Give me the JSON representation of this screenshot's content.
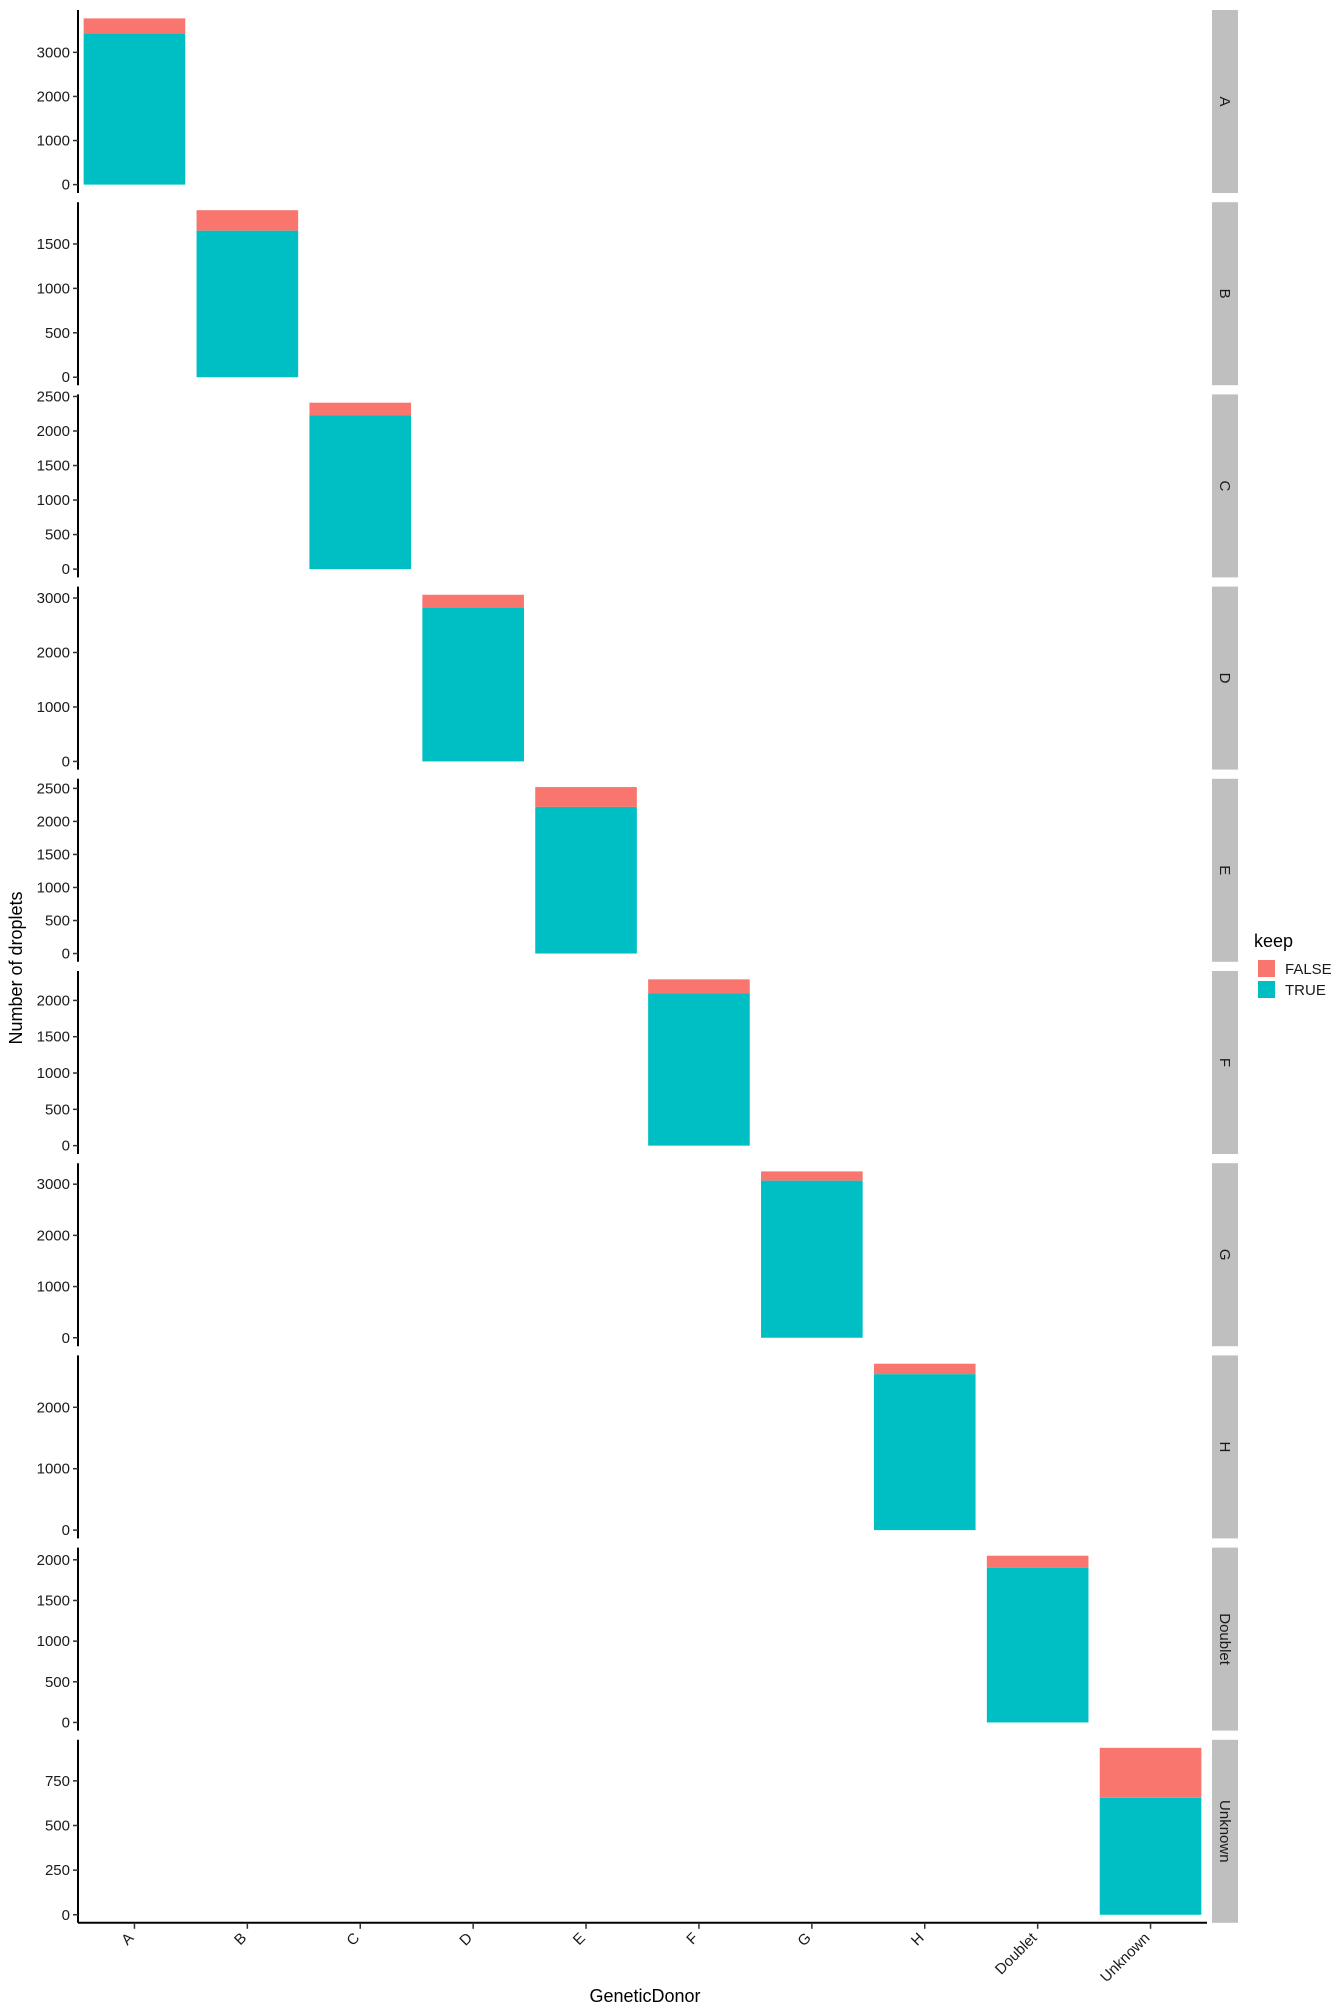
{
  "chart_data": {
    "type": "bar",
    "stacked": true,
    "faceted": true,
    "facet_direction": "rows",
    "free_y_scales": true,
    "xlabel": "GeneticDonor",
    "ylabel": "Number of droplets",
    "categories": [
      "A",
      "B",
      "C",
      "D",
      "E",
      "F",
      "G",
      "H",
      "Doublet",
      "Unknown"
    ],
    "legend": {
      "title": "keep",
      "placement": "right",
      "entries": [
        {
          "label": "FALSE",
          "color": "#F8766D"
        },
        {
          "label": "TRUE",
          "color": "#00BFC4"
        }
      ]
    },
    "facets": [
      {
        "label": "A",
        "category": "A",
        "true": 3430,
        "false": 340,
        "ylim": [
          -190,
          3960
        ],
        "ticks": [
          0,
          1000,
          2000,
          3000
        ],
        "tick_labels": [
          "0",
          "1000",
          "2000",
          "3000"
        ]
      },
      {
        "label": "B",
        "category": "B",
        "true": 1650,
        "false": 230,
        "ylim": [
          -90,
          1970
        ],
        "ticks": [
          0,
          500,
          1000,
          1500
        ],
        "tick_labels": [
          "0",
          "500",
          "1000",
          "1500"
        ]
      },
      {
        "label": "C",
        "category": "C",
        "true": 2230,
        "false": 180,
        "ylim": [
          -120,
          2530
        ],
        "ticks": [
          0,
          500,
          1000,
          1500,
          2000,
          2500
        ],
        "tick_labels": [
          "0",
          "500",
          "1000",
          "1500",
          "2000",
          "2500"
        ]
      },
      {
        "label": "D",
        "category": "D",
        "true": 2830,
        "false": 230,
        "ylim": [
          -150,
          3210
        ],
        "ticks": [
          0,
          1000,
          2000,
          3000
        ],
        "tick_labels": [
          "0",
          "1000",
          "2000",
          "3000"
        ]
      },
      {
        "label": "E",
        "category": "E",
        "true": 2220,
        "false": 300,
        "ylim": [
          -125,
          2645
        ],
        "ticks": [
          0,
          500,
          1000,
          1500,
          2000,
          2500
        ],
        "tick_labels": [
          "0",
          "500",
          "1000",
          "1500",
          "2000",
          "2500"
        ]
      },
      {
        "label": "F",
        "category": "F",
        "true": 2100,
        "false": 190,
        "ylim": [
          -115,
          2405
        ],
        "ticks": [
          0,
          500,
          1000,
          1500,
          2000
        ],
        "tick_labels": [
          "0",
          "500",
          "1000",
          "1500",
          "2000"
        ]
      },
      {
        "label": "G",
        "category": "G",
        "true": 3070,
        "false": 180,
        "ylim": [
          -165,
          3410
        ],
        "ticks": [
          0,
          1000,
          2000,
          3000
        ],
        "tick_labels": [
          "0",
          "1000",
          "2000",
          "3000"
        ]
      },
      {
        "label": "H",
        "category": "H",
        "true": 2540,
        "false": 170,
        "ylim": [
          -135,
          2845
        ],
        "ticks": [
          0,
          1000,
          2000
        ],
        "tick_labels": [
          "0",
          "1000",
          "2000"
        ]
      },
      {
        "label": "Doublet",
        "category": "Doublet",
        "true": 1900,
        "false": 150,
        "ylim": [
          -100,
          2150
        ],
        "ticks": [
          0,
          500,
          1000,
          1500,
          2000
        ],
        "tick_labels": [
          "0",
          "500",
          "1000",
          "1500",
          "2000"
        ]
      },
      {
        "label": "Unknown",
        "category": "Unknown",
        "true": 655,
        "false": 280,
        "ylim": [
          -45,
          980
        ],
        "ticks": [
          0,
          250,
          500,
          750
        ],
        "tick_labels": [
          "0",
          "250",
          "500",
          "750"
        ]
      }
    ],
    "colors": {
      "false": "#F8766D",
      "true": "#00BFC4",
      "strip": "#BFBFBF"
    },
    "grid": false
  }
}
